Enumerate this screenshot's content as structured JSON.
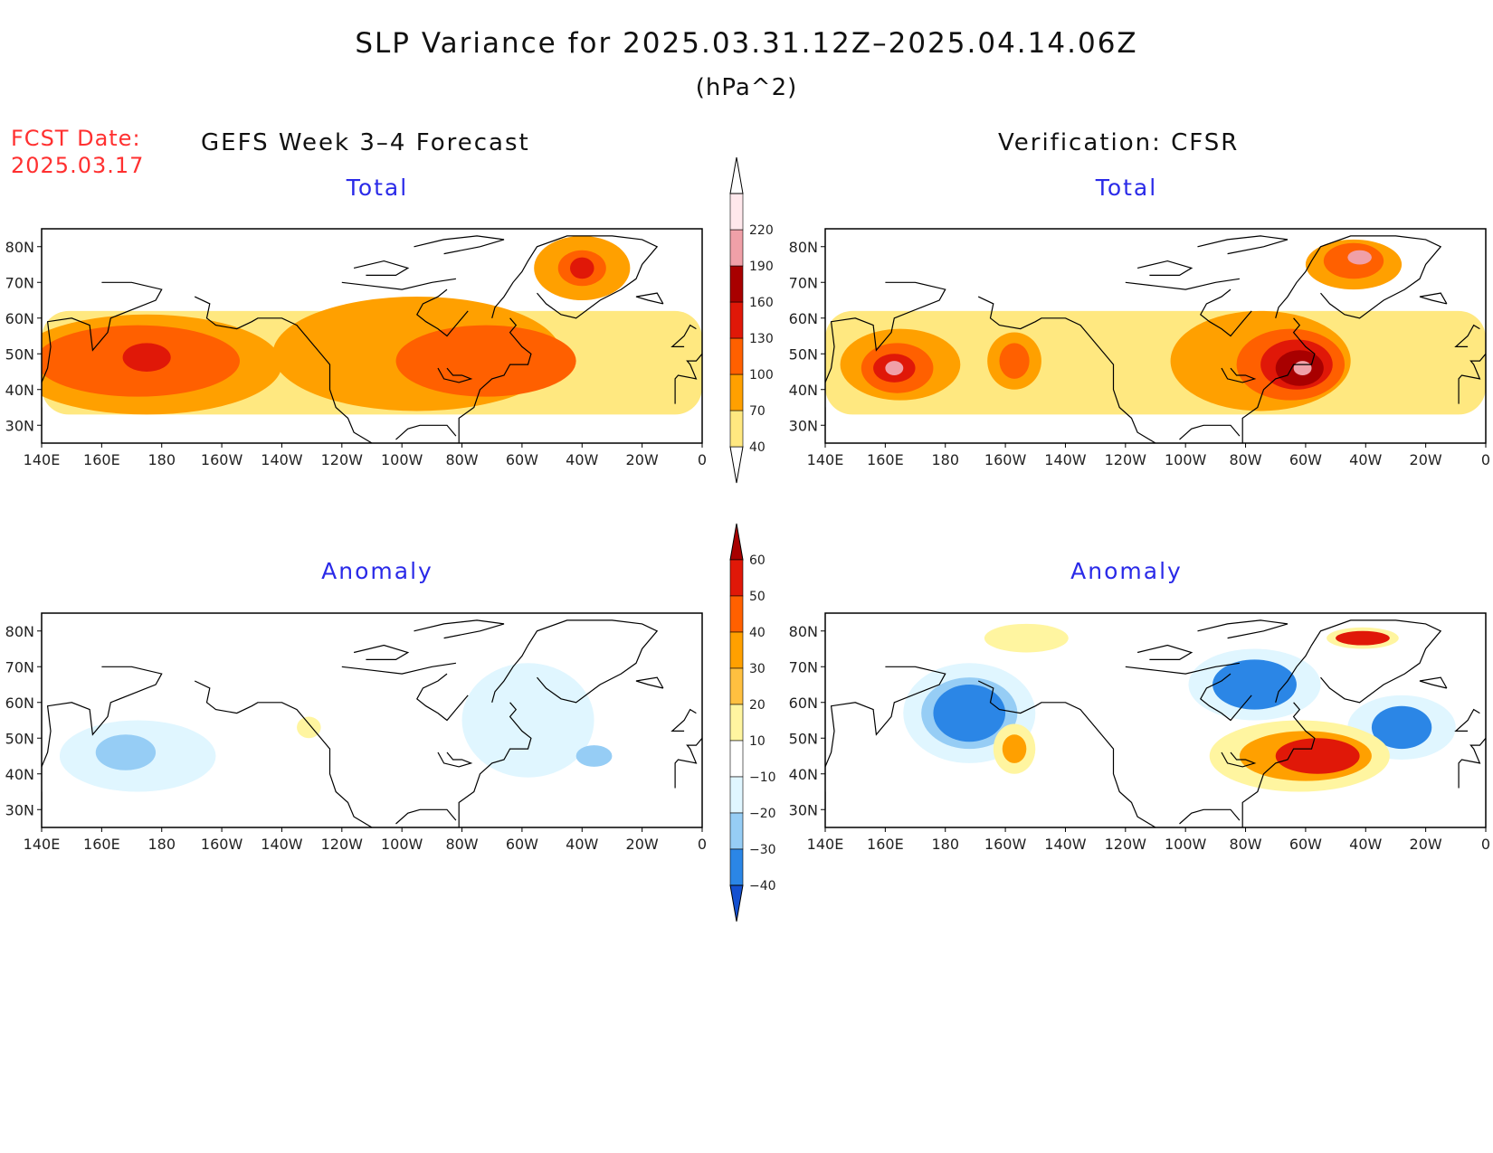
{
  "header": {
    "title": "SLP Variance for 2025.03.31.12Z–2025.04.14.06Z",
    "units": "(hPa^2)",
    "fcst_label": "FCST Date:",
    "fcst_date": "2025.03.17",
    "left_title": "GEFS Week 3–4 Forecast",
    "right_title": "Verification: CFSR"
  },
  "panels": {
    "tl": {
      "subtitle": "Total"
    },
    "tr": {
      "subtitle": "Total"
    },
    "bl": {
      "subtitle": "Anomaly"
    },
    "br": {
      "subtitle": "Anomaly"
    }
  },
  "axes": {
    "lon_labels": [
      "140E",
      "160E",
      "180",
      "160W",
      "140W",
      "120W",
      "100W",
      "80W",
      "60W",
      "40W",
      "20W",
      "0"
    ],
    "lat_labels": [
      "30N",
      "40N",
      "50N",
      "60N",
      "70N",
      "80N"
    ]
  },
  "colorbars": {
    "total": {
      "levels": [
        "40",
        "70",
        "100",
        "130",
        "160",
        "190",
        "220"
      ],
      "colors": [
        "#ffe880",
        "#ffa000",
        "#ff6000",
        "#e01808",
        "#a80000",
        "#f0a0a8",
        "#ffe8ec"
      ]
    },
    "anomaly": {
      "levels": [
        "−40",
        "−30",
        "−20",
        "−10",
        "10",
        "20",
        "30",
        "40",
        "50",
        "60"
      ],
      "colors": [
        "#1450d0",
        "#2b86e6",
        "#96cdf5",
        "#e0f6ff",
        "#ffffff",
        "#fff5a0",
        "#ffc040",
        "#ffa000",
        "#ff6000",
        "#e01808",
        "#a80000"
      ]
    }
  },
  "map_data": {
    "domain": {
      "lon": [
        "140E",
        "0"
      ],
      "lat": [
        "25N",
        "85N"
      ]
    },
    "fields": {
      "tl": [
        {
          "lon": 175,
          "lat": 47,
          "rx": 45,
          "ry": 14,
          "level": 1
        },
        {
          "lon": 172,
          "lat": 48,
          "rx": 34,
          "ry": 10,
          "level": 2
        },
        {
          "lon": 175,
          "lat": 49,
          "rx": 8,
          "ry": 4,
          "level": 3
        },
        {
          "lon": 265,
          "lat": 50,
          "rx": 48,
          "ry": 16,
          "level": 1
        },
        {
          "lon": 288,
          "lat": 48,
          "rx": 30,
          "ry": 10,
          "level": 2
        },
        {
          "lon": 320,
          "lat": 74,
          "rx": 16,
          "ry": 9,
          "level": 1
        },
        {
          "lon": 320,
          "lat": 74,
          "rx": 8,
          "ry": 5,
          "level": 2
        },
        {
          "lon": 320,
          "lat": 74,
          "rx": 4,
          "ry": 3,
          "level": 3
        }
      ],
      "tr": [
        {
          "lon": 165,
          "lat": 47,
          "rx": 20,
          "ry": 10,
          "level": 1
        },
        {
          "lon": 164,
          "lat": 46,
          "rx": 12,
          "ry": 7,
          "level": 2
        },
        {
          "lon": 163,
          "lat": 46,
          "rx": 7,
          "ry": 4,
          "level": 3
        },
        {
          "lon": 163,
          "lat": 46,
          "rx": 3,
          "ry": 2,
          "level": 5
        },
        {
          "lon": 203,
          "lat": 48,
          "rx": 9,
          "ry": 8,
          "level": 1
        },
        {
          "lon": 203,
          "lat": 48,
          "rx": 5,
          "ry": 5,
          "level": 2
        },
        {
          "lon": 285,
          "lat": 48,
          "rx": 30,
          "ry": 14,
          "level": 1
        },
        {
          "lon": 295,
          "lat": 47,
          "rx": 18,
          "ry": 10,
          "level": 2
        },
        {
          "lon": 297,
          "lat": 47,
          "rx": 12,
          "ry": 7,
          "level": 3
        },
        {
          "lon": 298,
          "lat": 46,
          "rx": 8,
          "ry": 5,
          "level": 4
        },
        {
          "lon": 299,
          "lat": 46,
          "rx": 3,
          "ry": 2,
          "level": 5
        },
        {
          "lon": 316,
          "lat": 75,
          "rx": 16,
          "ry": 7,
          "level": 1
        },
        {
          "lon": 316,
          "lat": 76,
          "rx": 10,
          "ry": 5,
          "level": 2
        },
        {
          "lon": 318,
          "lat": 77,
          "rx": 4,
          "ry": 2,
          "level": 5
        }
      ],
      "bl": [
        {
          "lon": 172,
          "lat": 45,
          "rx": 26,
          "ry": 10,
          "level": -1
        },
        {
          "lon": 168,
          "lat": 46,
          "rx": 10,
          "ry": 5,
          "level": -2
        },
        {
          "lon": 302,
          "lat": 55,
          "rx": 22,
          "ry": 16,
          "level": -1
        },
        {
          "lon": 324,
          "lat": 45,
          "rx": 6,
          "ry": 3,
          "level": -2
        },
        {
          "lon": 229,
          "lat": 53,
          "rx": 4,
          "ry": 3,
          "level": 1
        }
      ],
      "br": [
        {
          "lon": 188,
          "lat": 57,
          "rx": 22,
          "ry": 14,
          "level": -1
        },
        {
          "lon": 188,
          "lat": 57,
          "rx": 16,
          "ry": 10,
          "level": -2
        },
        {
          "lon": 188,
          "lat": 57,
          "rx": 12,
          "ry": 8,
          "level": -3
        },
        {
          "lon": 283,
          "lat": 65,
          "rx": 22,
          "ry": 10,
          "level": -1
        },
        {
          "lon": 283,
          "lat": 65,
          "rx": 14,
          "ry": 7,
          "level": -3
        },
        {
          "lon": 332,
          "lat": 53,
          "rx": 18,
          "ry": 9,
          "level": -1
        },
        {
          "lon": 332,
          "lat": 53,
          "rx": 10,
          "ry": 6,
          "level": -3
        },
        {
          "lon": 203,
          "lat": 47,
          "rx": 7,
          "ry": 7,
          "level": 1
        },
        {
          "lon": 203,
          "lat": 47,
          "rx": 4,
          "ry": 4,
          "level": 3
        },
        {
          "lon": 298,
          "lat": 45,
          "rx": 30,
          "ry": 10,
          "level": 1
        },
        {
          "lon": 300,
          "lat": 45,
          "rx": 22,
          "ry": 7,
          "level": 3
        },
        {
          "lon": 304,
          "lat": 45,
          "rx": 14,
          "ry": 5,
          "level": 4
        },
        {
          "lon": 319,
          "lat": 78,
          "rx": 12,
          "ry": 3,
          "level": 1
        },
        {
          "lon": 319,
          "lat": 78,
          "rx": 9,
          "ry": 2,
          "level": 4
        },
        {
          "lon": 207,
          "lat": 78,
          "rx": 14,
          "ry": 4,
          "level": 1
        }
      ]
    }
  }
}
